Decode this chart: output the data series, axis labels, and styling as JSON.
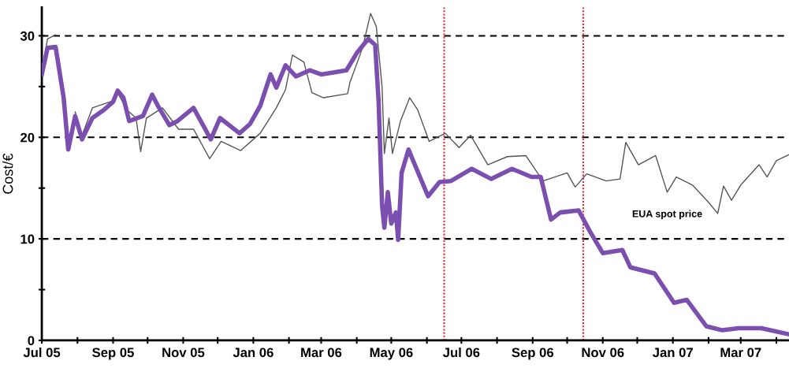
{
  "chart_data": {
    "type": "line",
    "ylabel": "Cost/€",
    "xlim": [
      "2005-07-01",
      "2007-04-12"
    ],
    "xticks": [
      {
        "value": "2005-07-01",
        "label": "Jul 05"
      },
      {
        "value": "2005-08-01",
        "label": null
      },
      {
        "value": "2005-09-01",
        "label": "Sep 05"
      },
      {
        "value": "2005-10-01",
        "label": null
      },
      {
        "value": "2005-11-01",
        "label": "Nov 05"
      },
      {
        "value": "2005-12-01",
        "label": null
      },
      {
        "value": "2006-01-01",
        "label": "Jan 06"
      },
      {
        "value": "2006-02-01",
        "label": null
      },
      {
        "value": "2006-03-01",
        "label": "Mar 06"
      },
      {
        "value": "2006-04-01",
        "label": null
      },
      {
        "value": "2006-05-01",
        "label": "May 06"
      },
      {
        "value": "2006-06-01",
        "label": null
      },
      {
        "value": "2006-07-01",
        "label": "Jul 06"
      },
      {
        "value": "2006-08-01",
        "label": null
      },
      {
        "value": "2006-09-01",
        "label": "Sep 06"
      },
      {
        "value": "2006-10-01",
        "label": null
      },
      {
        "value": "2006-11-01",
        "label": "Nov 06"
      },
      {
        "value": "2006-12-01",
        "label": null
      },
      {
        "value": "2007-01-01",
        "label": "Jan 07"
      },
      {
        "value": "2007-02-01",
        "label": null
      },
      {
        "value": "2007-03-01",
        "label": "Mar 07"
      },
      {
        "value": "2007-04-01",
        "label": null
      }
    ],
    "ylim": [
      0,
      32.8
    ],
    "yticks": [
      0,
      {
        "value": 5,
        "label": null
      },
      10,
      {
        "value": 15,
        "label": null
      },
      20,
      {
        "value": 25,
        "label": null
      },
      30
    ],
    "ref_lines": [
      {
        "axis": "y",
        "value": 10,
        "color": "#000000",
        "line_style": "dashed"
      },
      {
        "axis": "y",
        "value": 20,
        "color": "#000000",
        "line_style": "dashed"
      },
      {
        "axis": "y",
        "value": 30,
        "color": "#000000",
        "line_style": "dashed"
      },
      {
        "axis": "x",
        "value": "2006-06-16",
        "color": "#e8262a",
        "line_style": "dotted"
      },
      {
        "axis": "x",
        "value": "2006-10-15",
        "color": "#e8262a",
        "line_style": "dotted"
      }
    ],
    "annotations": [
      "EUA spot price"
    ],
    "series": [
      {
        "color": "#555555",
        "x": [
          "2005-07-01",
          "2005-07-06",
          "2005-07-13",
          "2005-07-20",
          "2005-07-24",
          "2005-07-30",
          "2005-08-05",
          "2005-08-14",
          "2005-09-01",
          "2005-09-05",
          "2005-09-13",
          "2005-09-21",
          "2005-09-25",
          "2005-09-30",
          "2005-10-14",
          "2005-10-28",
          "2005-11-10",
          "2005-11-24",
          "2005-12-04",
          "2005-12-21",
          "2006-01-07",
          "2006-01-21",
          "2006-01-29",
          "2006-02-04",
          "2006-02-14",
          "2006-02-21",
          "2006-03-03",
          "2006-03-24",
          "2006-03-26",
          "2006-04-06",
          "2006-04-13",
          "2006-04-18",
          "2006-04-23",
          "2006-04-25",
          "2006-04-29",
          "2006-05-02",
          "2006-05-09",
          "2006-05-17",
          "2006-05-24",
          "2006-06-03",
          "2006-06-17",
          "2006-06-29",
          "2006-07-09",
          "2006-07-24",
          "2006-08-10",
          "2006-08-26",
          "2006-09-10",
          "2006-10-01",
          "2006-10-08",
          "2006-10-18",
          "2006-11-04",
          "2006-11-16",
          "2006-11-21",
          "2006-12-02",
          "2006-12-17",
          "2006-12-27",
          "2007-01-04",
          "2007-01-18",
          "2007-02-01",
          "2007-02-09",
          "2007-02-14",
          "2007-02-21",
          "2007-03-01",
          "2007-03-17",
          "2007-03-24",
          "2007-04-01",
          "2007-04-12"
        ],
        "values": [
          26.6,
          29.7,
          30.1,
          null,
          null,
          22.5,
          20.2,
          22.9,
          23.6,
          24.4,
          22.7,
          21.9,
          18.6,
          21.9,
          22.9,
          20.8,
          20.8,
          17.9,
          19.6,
          18.7,
          20.4,
          22.9,
          24.7,
          28.1,
          27.4,
          24.4,
          23.9,
          24.3,
          25.4,
          28.8,
          32.2,
          30.9,
          25.0,
          18.4,
          21.9,
          18.4,
          21.6,
          23.9,
          22.7,
          19.6,
          20.4,
          19.0,
          20.2,
          17.3,
          18.1,
          18.2,
          15.7,
          16.5,
          15.1,
          16.4,
          15.7,
          15.9,
          19.5,
          17.3,
          18.2,
          14.6,
          16.1,
          15.3,
          13.6,
          12.5,
          15.2,
          13.8,
          15.3,
          17.3,
          16.1,
          17.7,
          18.3
        ]
      },
      {
        "color": "#7b4fb0",
        "x": [
          "2005-07-01",
          "2005-07-06",
          "2005-07-13",
          "2005-07-20",
          "2005-07-24",
          "2005-07-30",
          "2005-08-05",
          "2005-08-14",
          "2005-08-24",
          "2005-09-01",
          "2005-09-05",
          "2005-09-10",
          "2005-09-15",
          "2005-09-27",
          "2005-10-05",
          "2005-10-10",
          "2005-10-20",
          "2005-10-27",
          "2005-11-10",
          "2005-11-25",
          "2005-12-03",
          "2005-12-20",
          "2005-12-29",
          "2006-01-07",
          "2006-01-16",
          "2006-01-21",
          "2006-01-29",
          "2006-02-07",
          "2006-02-19",
          "2006-03-01",
          "2006-03-23",
          "2006-04-01",
          "2006-04-11",
          "2006-04-17",
          "2006-04-20",
          "2006-04-23",
          "2006-04-25",
          "2006-04-28",
          "2006-05-01",
          "2006-05-05",
          "2006-05-07",
          "2006-05-10",
          "2006-05-16",
          "2006-05-23",
          "2006-06-02",
          "2006-06-12",
          "2006-06-22",
          "2006-07-10",
          "2006-07-27",
          "2006-08-14",
          "2006-08-31",
          "2006-09-08",
          "2006-09-17",
          "2006-09-25",
          "2006-10-11",
          "2006-10-21",
          "2006-11-01",
          "2006-11-18",
          "2006-11-25",
          "2006-12-16",
          "2007-01-02",
          "2007-01-13",
          "2007-01-30",
          "2007-02-13",
          "2007-02-27",
          "2007-03-19",
          "2007-04-12"
        ],
        "values": [
          26.2,
          28.8,
          28.9,
          23.9,
          18.8,
          22.1,
          19.8,
          21.9,
          22.7,
          23.5,
          24.6,
          23.9,
          21.6,
          22.1,
          24.2,
          23.1,
          21.2,
          21.6,
          22.9,
          19.8,
          21.9,
          20.4,
          21.3,
          23.1,
          26.2,
          24.9,
          27.1,
          26.0,
          26.6,
          26.2,
          26.6,
          28.3,
          29.7,
          29.1,
          23.5,
          13.3,
          11.1,
          14.6,
          11.5,
          12.6,
          9.9,
          16.5,
          18.8,
          16.9,
          14.2,
          15.6,
          15.7,
          16.9,
          15.9,
          16.9,
          16.1,
          16.1,
          11.9,
          12.6,
          12.8,
          10.7,
          8.6,
          8.9,
          7.2,
          6.6,
          3.7,
          4.0,
          1.4,
          1.0,
          1.2,
          1.2,
          0.6
        ]
      }
    ]
  }
}
